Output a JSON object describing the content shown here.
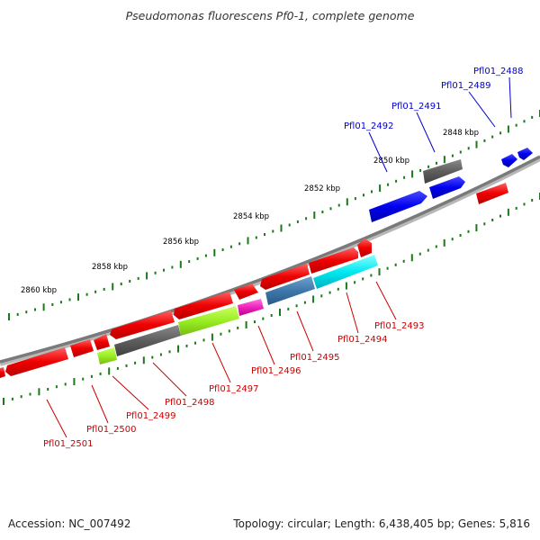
{
  "title": "Pseudomonas fluorescens Pf0-1, complete genome",
  "footer": {
    "accession": "Accession: NC_007492",
    "summary": "Topology: circular; Length: 6,438,405 bp; Genes: 5,816"
  },
  "colors": {
    "forward_label": "#0000cc",
    "reverse_label": "#cc0000",
    "tick": "#1a7a1a",
    "backbone": "#808080"
  },
  "ticks": [
    "2848 kbp",
    "2850 kbp",
    "2852 kbp",
    "2854 kbp",
    "2856 kbp",
    "2858 kbp",
    "2860 kbp"
  ],
  "forward_genes": [
    "Pfl01_2488",
    "Pfl01_2489",
    "Pfl01_2491",
    "Pfl01_2492"
  ],
  "reverse_genes": [
    "Pfl01_2493",
    "Pfl01_2494",
    "Pfl01_2495",
    "Pfl01_2496",
    "Pfl01_2497",
    "Pfl01_2498",
    "Pfl01_2499",
    "Pfl01_2500",
    "Pfl01_2501"
  ]
}
